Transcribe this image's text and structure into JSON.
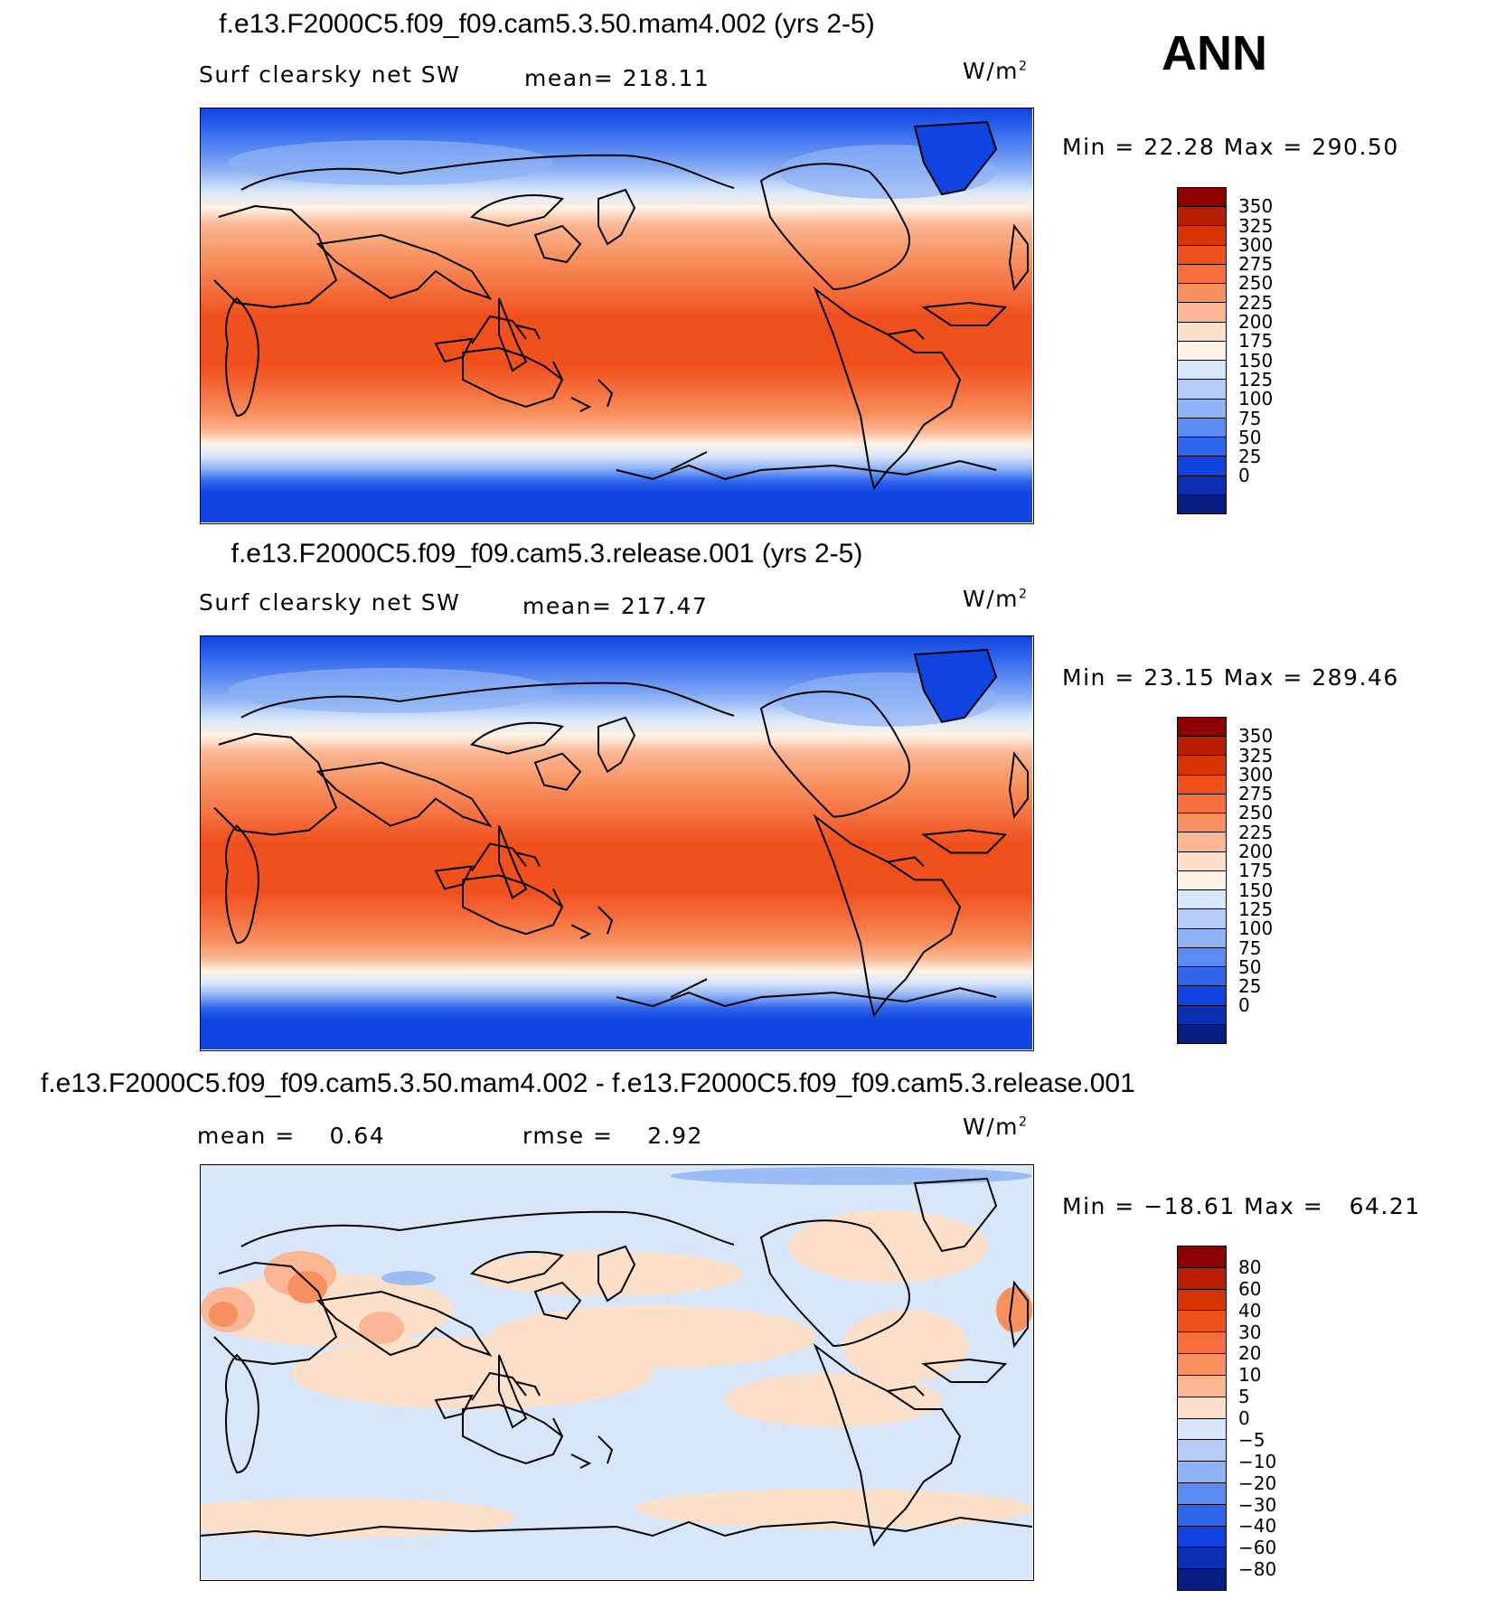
{
  "season": "ANN",
  "units_main": "W/m",
  "units_sup": "2",
  "panels": [
    {
      "title": "f.e13.F2000C5.f09_f09.cam5.3.50.mam4.002 (yrs 2-5)",
      "variable": "Surf clearsky net SW",
      "stat_left": "",
      "stat_mid": "mean= 218.11",
      "minmax": "Min =   22.28 Max =  290.50",
      "colorbar": {
        "labels": [
          "350",
          "325",
          "300",
          "275",
          "250",
          "225",
          "200",
          "175",
          "150",
          "125",
          "100",
          "75",
          "50",
          "25",
          "0"
        ],
        "colors": [
          "#8c0000",
          "#b81d00",
          "#d63500",
          "#f0501c",
          "#f56e3c",
          "#f8915f",
          "#fbb794",
          "#fde0c9",
          "#fff3e6",
          "#d8e6fa",
          "#b4ccf7",
          "#8db2f5",
          "#5a8af2",
          "#2f66ee",
          "#0f44e0",
          "#0a2fb3",
          "#061d82"
        ]
      }
    },
    {
      "title": "f.e13.F2000C5.f09_f09.cam5.3.release.001 (yrs 2-5)",
      "variable": "Surf clearsky net SW",
      "stat_left": "",
      "stat_mid": "mean= 217.47",
      "minmax": "Min =   23.15 Max =  289.46",
      "colorbar": {
        "labels": [
          "350",
          "325",
          "300",
          "275",
          "250",
          "225",
          "200",
          "175",
          "150",
          "125",
          "100",
          "75",
          "50",
          "25",
          "0"
        ],
        "colors": [
          "#8c0000",
          "#b81d00",
          "#d63500",
          "#f0501c",
          "#f56e3c",
          "#f8915f",
          "#fbb794",
          "#fde0c9",
          "#fff3e6",
          "#d8e6fa",
          "#b4ccf7",
          "#8db2f5",
          "#5a8af2",
          "#2f66ee",
          "#0f44e0",
          "#0a2fb3",
          "#061d82"
        ]
      }
    },
    {
      "title": "f.e13.F2000C5.f09_f09.cam5.3.50.mam4.002 - f.e13.F2000C5.f09_f09.cam5.3.release.001",
      "variable": "",
      "stat_left": "mean =    0.64",
      "stat_mid": "rmse =    2.92",
      "minmax": "Min = −18.61 Max =   64.21",
      "colorbar": {
        "labels": [
          "80",
          "60",
          "40",
          "30",
          "20",
          "10",
          "5",
          "0",
          "−5",
          "−10",
          "−20",
          "−30",
          "−40",
          "−60",
          "−80"
        ],
        "colors": [
          "#8c0000",
          "#b81d00",
          "#d63500",
          "#f0501c",
          "#f56e3c",
          "#f8915f",
          "#fbb794",
          "#fde0c9",
          "#d8e6fa",
          "#b4ccf7",
          "#8db2f5",
          "#5a8af2",
          "#2f66ee",
          "#0f44e0",
          "#0a2fb3",
          "#061d82"
        ]
      }
    }
  ]
}
